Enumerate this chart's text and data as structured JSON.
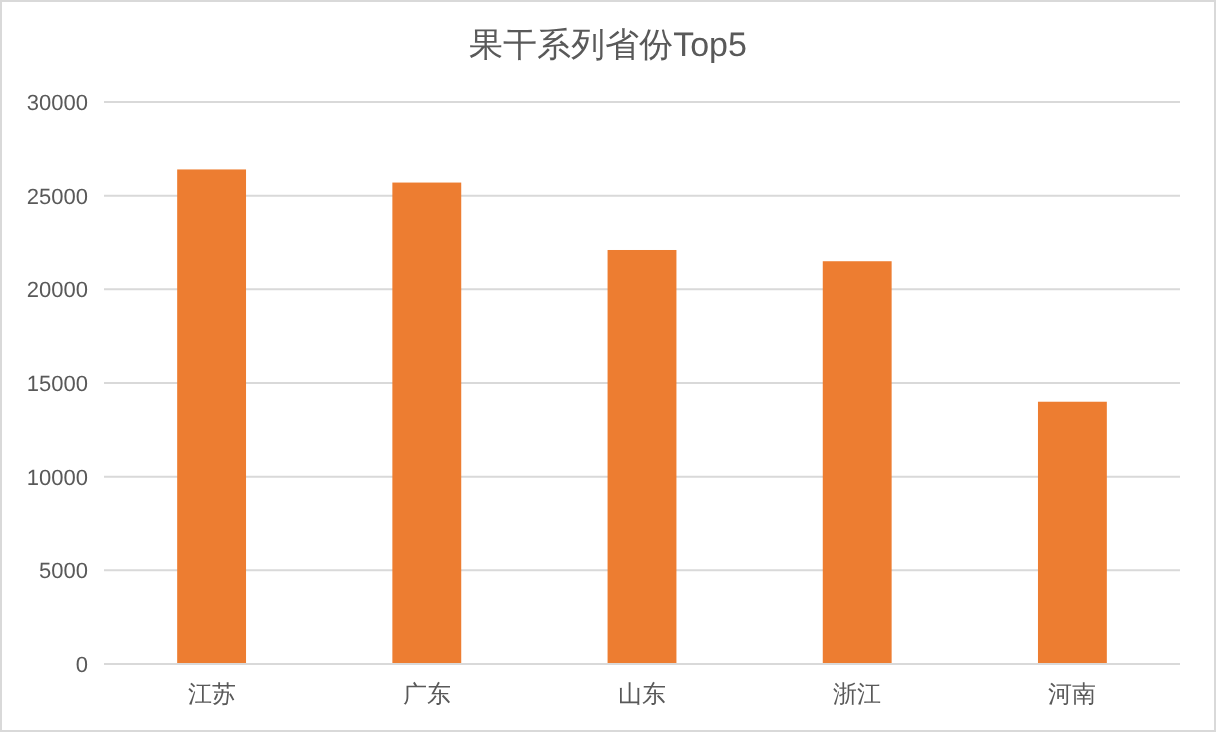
{
  "chart_data": {
    "type": "bar",
    "title": "果干系列省份Top5",
    "categories": [
      "江苏",
      "广东",
      "山东",
      "浙江",
      "河南"
    ],
    "values": [
      26400,
      25700,
      22100,
      21500,
      14000
    ],
    "color": "#ed7d31",
    "ylim": [
      0,
      30000
    ],
    "yticks": [
      0,
      5000,
      10000,
      15000,
      20000,
      25000,
      30000
    ],
    "grid": "y"
  }
}
